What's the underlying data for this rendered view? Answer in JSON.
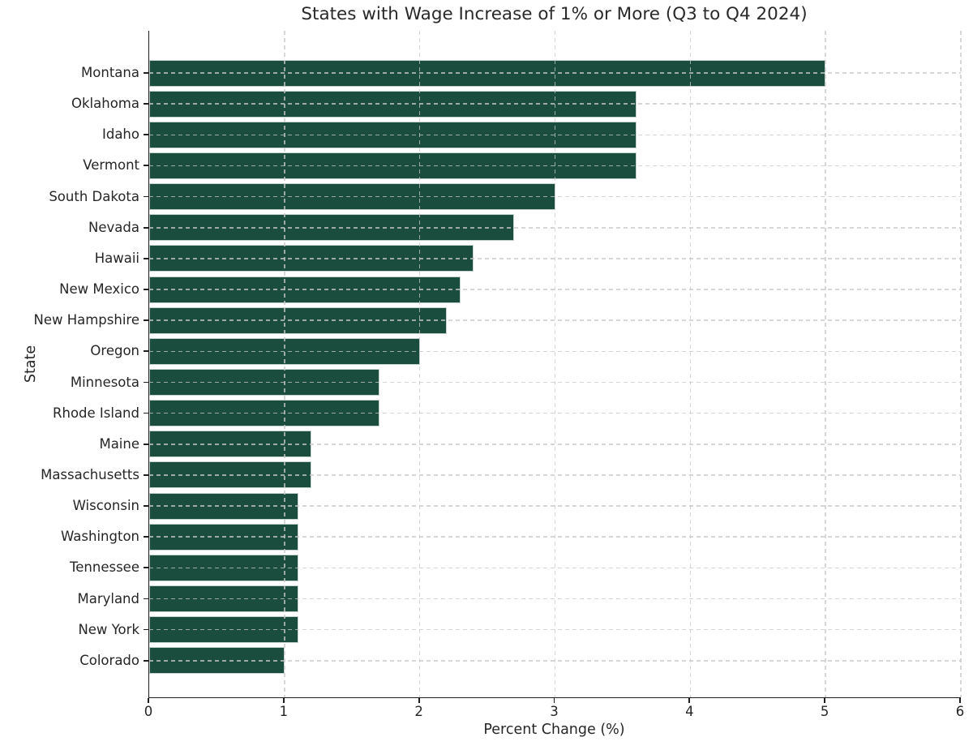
{
  "chart_data": {
    "type": "bar",
    "orientation": "horizontal",
    "title": "States with Wage Increase of 1% or More (Q3 to Q4 2024)",
    "xlabel": "Percent Change (%)",
    "ylabel": "State",
    "categories": [
      "Montana",
      "Oklahoma",
      "Idaho",
      "Vermont",
      "South Dakota",
      "Nevada",
      "Hawaii",
      "New Mexico",
      "New Hampshire",
      "Oregon",
      "Minnesota",
      "Rhode Island",
      "Maine",
      "Massachusetts",
      "Wisconsin",
      "Washington",
      "Tennessee",
      "Maryland",
      "New York",
      "Colorado"
    ],
    "values": [
      5.0,
      3.6,
      3.6,
      3.6,
      3.0,
      2.7,
      2.4,
      2.3,
      2.2,
      2.0,
      1.7,
      1.7,
      1.2,
      1.2,
      1.1,
      1.1,
      1.1,
      1.1,
      1.1,
      1.0
    ],
    "xlim": [
      0,
      6
    ],
    "xticks": [
      0,
      1,
      2,
      3,
      4,
      5,
      6
    ],
    "grid": true,
    "grid_style": "dashed",
    "legend": "none",
    "bar_color": "#1b4d3e",
    "background_color": "#ffffff"
  }
}
